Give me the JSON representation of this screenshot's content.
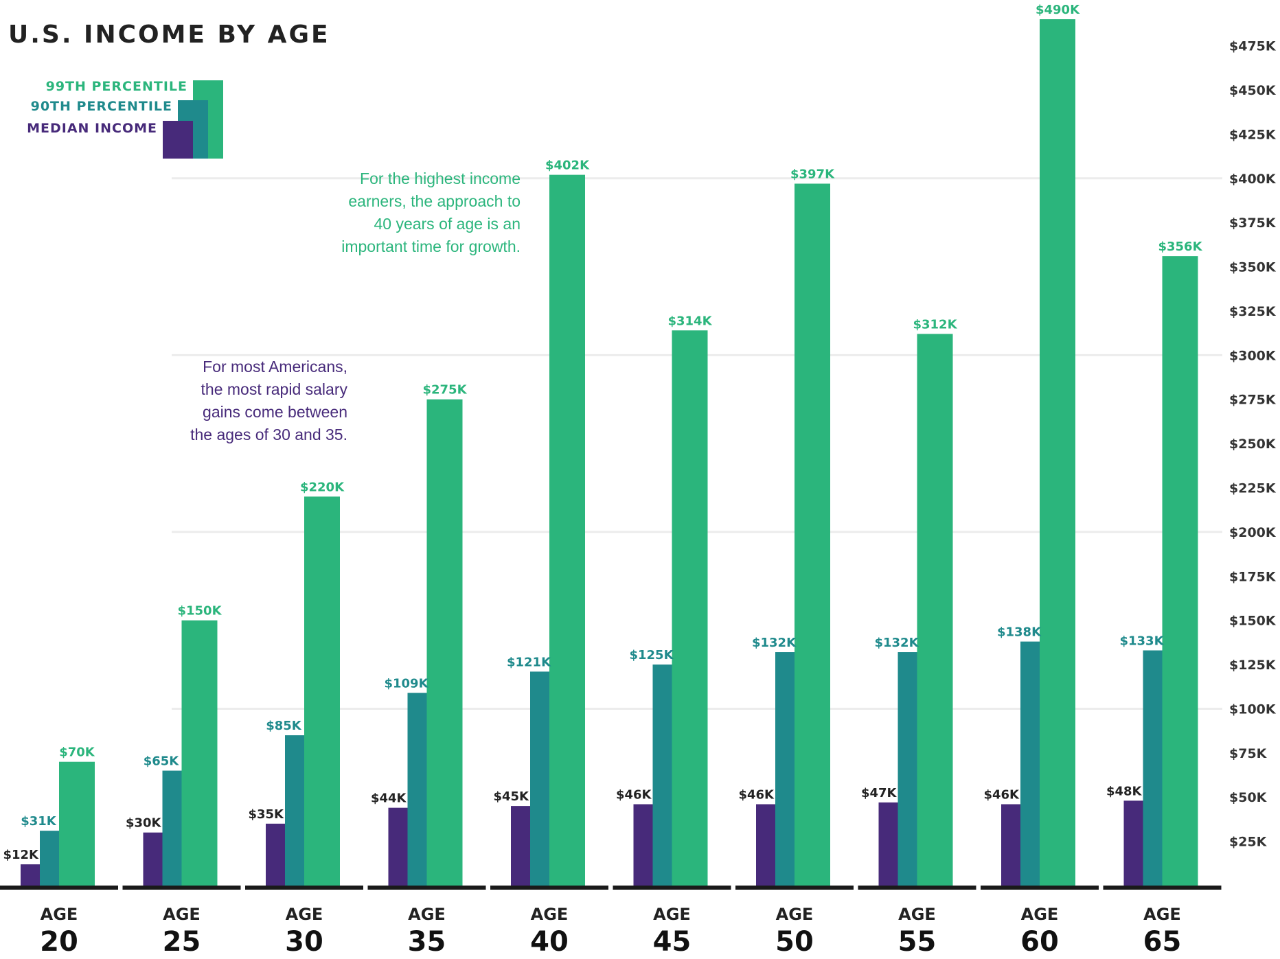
{
  "colors": {
    "p99": "#2bb57c",
    "p90": "#1f8a8c",
    "median": "#472a7a",
    "grid": "#ececec",
    "baseline": "#1a1a1a"
  },
  "annotations": {
    "top_earners": [
      "For the highest income",
      "earners, the approach to",
      "40 years of age is an",
      "important time for growth."
    ],
    "most_americans": [
      "For most Americans,",
      "the most rapid salary",
      "gains come between",
      "the ages of 30 and 35."
    ]
  },
  "chart_data": {
    "type": "bar",
    "title": "U.S. INCOME BY AGE",
    "categories": [
      "20",
      "25",
      "30",
      "35",
      "40",
      "45",
      "50",
      "55",
      "60",
      "65"
    ],
    "category_prefix": "AGE",
    "series": [
      {
        "name": "MEDIAN INCOME",
        "key": "median",
        "values": [
          12,
          30,
          35,
          44,
          45,
          46,
          46,
          47,
          46,
          48
        ],
        "labels": [
          "$12K",
          "$30K",
          "$35K",
          "$44K",
          "$45K",
          "$46K",
          "$46K",
          "$47K",
          "$46K",
          "$48K"
        ]
      },
      {
        "name": "90TH PERCENTILE",
        "key": "p90",
        "values": [
          31,
          65,
          85,
          109,
          121,
          125,
          132,
          132,
          138,
          133
        ],
        "labels": [
          "$31K",
          "$65K",
          "$85K",
          "$109K",
          "$121K",
          "$125K",
          "$132K",
          "$132K",
          "$138K",
          "$133K"
        ]
      },
      {
        "name": "99TH PERCENTILE",
        "key": "p99",
        "values": [
          70,
          150,
          220,
          275,
          402,
          314,
          397,
          312,
          490,
          356
        ],
        "labels": [
          "$70K",
          "$150K",
          "$220K",
          "$275K",
          "$402K",
          "$314K",
          "$397K",
          "$312K",
          "$490K",
          "$356K"
        ]
      }
    ],
    "ylim": [
      0,
      490
    ],
    "yticks": [
      25,
      50,
      75,
      100,
      125,
      150,
      175,
      200,
      225,
      250,
      275,
      300,
      325,
      350,
      375,
      400,
      425,
      450,
      475
    ],
    "ytick_labels": [
      "$25K",
      "$50K",
      "$75K",
      "$100K",
      "$125K",
      "$150K",
      "$175K",
      "$200K",
      "$225K",
      "$250K",
      "$275K",
      "$300K",
      "$325K",
      "$350K",
      "$375K",
      "$400K",
      "$425K",
      "$450K",
      "$475K"
    ],
    "y_axis_position": "right",
    "gridlines": [
      100,
      200,
      300,
      400
    ],
    "legend_position": "top-left",
    "xlabel": "",
    "ylabel": ""
  }
}
